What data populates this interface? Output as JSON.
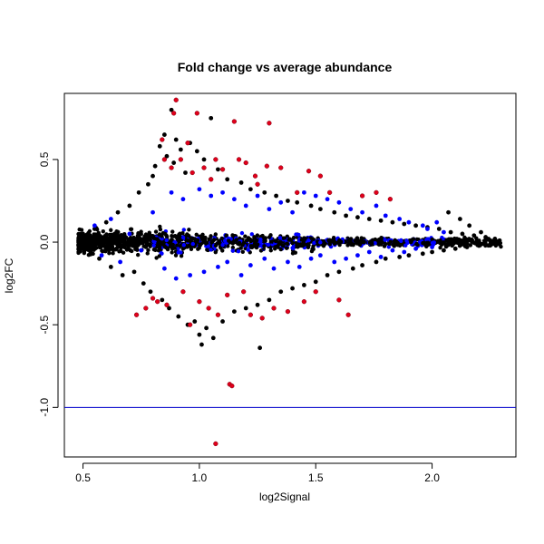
{
  "chart_data": {
    "type": "scatter",
    "title": "Fold change vs average abundance",
    "xlabel": "log2Signal",
    "ylabel": "log2FC",
    "xlim": [
      0.42,
      2.36
    ],
    "ylim": [
      -1.3,
      0.9
    ],
    "xticks": [
      0.5,
      1.0,
      1.5,
      2.0
    ],
    "xtick_labels": [
      "0.5",
      "1.0",
      "1.5",
      "2.0"
    ],
    "yticks": [
      -1.0,
      -0.5,
      0.0,
      0.5
    ],
    "ytick_labels": [
      "-1.0",
      "-0.5",
      "0.0",
      "0.5"
    ],
    "grid": false,
    "hline": {
      "y": -1.0,
      "color": "#0000cc"
    },
    "colors": {
      "black": "#000000",
      "blue": "#0000ff",
      "red": "#e0001b"
    },
    "series": [
      {
        "color": "black",
        "points": [
          [
            0.5,
            0.05
          ],
          [
            0.52,
            -0.03
          ],
          [
            0.55,
            0.08
          ],
          [
            0.57,
            -0.1
          ],
          [
            0.6,
            0.12
          ],
          [
            0.62,
            -0.15
          ],
          [
            0.65,
            0.18
          ],
          [
            0.67,
            -0.2
          ],
          [
            0.7,
            0.22
          ],
          [
            0.72,
            -0.18
          ],
          [
            0.74,
            0.3
          ],
          [
            0.76,
            -0.25
          ],
          [
            0.78,
            0.35
          ],
          [
            0.79,
            -0.3
          ],
          [
            0.8,
            0.4
          ],
          [
            0.81,
            0.46
          ],
          [
            0.83,
            0.58
          ],
          [
            0.84,
            -0.35
          ],
          [
            0.85,
            0.65
          ],
          [
            0.86,
            0.52
          ],
          [
            0.87,
            -0.4
          ],
          [
            0.88,
            0.8
          ],
          [
            0.89,
            0.48
          ],
          [
            0.9,
            0.62
          ],
          [
            0.91,
            -0.45
          ],
          [
            0.92,
            0.56
          ],
          [
            0.94,
            0.42
          ],
          [
            0.95,
            -0.5
          ],
          [
            0.96,
            0.6
          ],
          [
            0.98,
            -0.48
          ],
          [
            0.99,
            0.55
          ],
          [
            1.0,
            -0.56
          ],
          [
            1.01,
            -0.62
          ],
          [
            1.02,
            0.5
          ],
          [
            1.03,
            -0.52
          ],
          [
            1.05,
            0.75
          ],
          [
            1.06,
            -0.58
          ],
          [
            1.08,
            0.44
          ],
          [
            1.1,
            -0.48
          ],
          [
            1.12,
            0.38
          ],
          [
            1.15,
            -0.42
          ],
          [
            1.18,
            0.36
          ],
          [
            1.2,
            -0.4
          ],
          [
            1.22,
            0.32
          ],
          [
            1.25,
            -0.38
          ],
          [
            1.26,
            -0.64
          ],
          [
            1.28,
            0.3
          ],
          [
            1.3,
            -0.35
          ],
          [
            1.33,
            0.28
          ],
          [
            1.35,
            -0.3
          ],
          [
            1.38,
            0.25
          ],
          [
            1.4,
            -0.28
          ],
          [
            1.42,
            0.24
          ],
          [
            1.45,
            -0.26
          ],
          [
            1.48,
            0.22
          ],
          [
            1.5,
            -0.24
          ],
          [
            1.52,
            0.2
          ],
          [
            1.55,
            -0.2
          ],
          [
            1.58,
            0.18
          ],
          [
            1.6,
            -0.18
          ],
          [
            1.63,
            0.16
          ],
          [
            1.66,
            -0.16
          ],
          [
            1.68,
            0.15
          ],
          [
            1.7,
            -0.14
          ],
          [
            1.73,
            0.14
          ],
          [
            1.76,
            -0.12
          ],
          [
            1.78,
            0.13
          ],
          [
            1.8,
            -0.1
          ],
          [
            1.83,
            0.12
          ],
          [
            1.86,
            -0.09
          ],
          [
            1.88,
            0.11
          ],
          [
            1.9,
            -0.08
          ],
          [
            1.93,
            0.1
          ],
          [
            1.96,
            -0.07
          ],
          [
            1.98,
            0.09
          ],
          [
            2.0,
            -0.06
          ],
          [
            2.03,
            0.08
          ],
          [
            2.05,
            -0.05
          ],
          [
            2.07,
            0.18
          ],
          [
            2.08,
            0.06
          ],
          [
            2.1,
            -0.04
          ],
          [
            2.12,
            0.14
          ],
          [
            2.13,
            0.05
          ],
          [
            2.15,
            -0.03
          ],
          [
            2.16,
            0.1
          ],
          [
            2.18,
            0.04
          ],
          [
            2.2,
            -0.02
          ],
          [
            2.21,
            0.06
          ],
          [
            2.23,
            0.03
          ],
          [
            2.25,
            -0.02
          ],
          [
            2.27,
            0.02
          ],
          [
            2.29,
            0.01
          ]
        ]
      },
      {
        "color": "blue",
        "points": [
          [
            0.55,
            0.1
          ],
          [
            0.58,
            -0.08
          ],
          [
            0.62,
            0.14
          ],
          [
            0.66,
            -0.12
          ],
          [
            0.7,
            0.05
          ],
          [
            0.75,
            -0.05
          ],
          [
            0.8,
            0.18
          ],
          [
            0.85,
            -0.16
          ],
          [
            0.88,
            0.3
          ],
          [
            0.9,
            -0.22
          ],
          [
            0.93,
            0.26
          ],
          [
            0.96,
            -0.2
          ],
          [
            1.0,
            0.32
          ],
          [
            1.02,
            -0.18
          ],
          [
            1.05,
            0.28
          ],
          [
            1.08,
            -0.15
          ],
          [
            1.1,
            0.3
          ],
          [
            1.12,
            -0.12
          ],
          [
            1.15,
            0.26
          ],
          [
            1.18,
            -0.2
          ],
          [
            1.2,
            0.22
          ],
          [
            1.22,
            -0.14
          ],
          [
            1.25,
            0.28
          ],
          [
            1.28,
            -0.1
          ],
          [
            1.3,
            0.2
          ],
          [
            1.32,
            -0.16
          ],
          [
            1.35,
            0.24
          ],
          [
            1.38,
            -0.12
          ],
          [
            1.4,
            0.18
          ],
          [
            1.43,
            -0.15
          ],
          [
            1.45,
            0.3
          ],
          [
            1.48,
            -0.1
          ],
          [
            1.5,
            0.28
          ],
          [
            1.52,
            -0.08
          ],
          [
            1.55,
            0.26
          ],
          [
            1.58,
            -0.12
          ],
          [
            1.6,
            0.24
          ],
          [
            1.63,
            -0.1
          ],
          [
            1.65,
            0.2
          ],
          [
            1.68,
            -0.08
          ],
          [
            1.7,
            0.18
          ],
          [
            1.73,
            -0.06
          ],
          [
            1.76,
            0.22
          ],
          [
            1.78,
            -0.09
          ],
          [
            1.8,
            0.16
          ],
          [
            1.83,
            -0.05
          ],
          [
            1.86,
            0.14
          ],
          [
            1.88,
            -0.06
          ],
          [
            1.9,
            0.12
          ],
          [
            1.93,
            -0.04
          ],
          [
            1.96,
            0.1
          ],
          [
            1.98,
            0.08
          ],
          [
            2.0,
            -0.03
          ],
          [
            2.02,
            0.12
          ],
          [
            2.05,
            0.06
          ]
        ]
      },
      {
        "color": "red",
        "points": [
          [
            0.73,
            -0.44
          ],
          [
            0.77,
            -0.4
          ],
          [
            0.8,
            -0.34
          ],
          [
            0.82,
            -0.36
          ],
          [
            0.84,
            0.62
          ],
          [
            0.85,
            0.5
          ],
          [
            0.86,
            -0.38
          ],
          [
            0.88,
            0.45
          ],
          [
            0.89,
            0.78
          ],
          [
            0.9,
            0.86
          ],
          [
            0.92,
            0.5
          ],
          [
            0.93,
            -0.3
          ],
          [
            0.95,
            0.6
          ],
          [
            0.96,
            -0.5
          ],
          [
            0.97,
            0.42
          ],
          [
            0.99,
            0.78
          ],
          [
            1.0,
            -0.36
          ],
          [
            1.02,
            0.45
          ],
          [
            1.04,
            -0.4
          ],
          [
            1.05,
            0.38
          ],
          [
            1.07,
            0.5
          ],
          [
            1.08,
            -0.44
          ],
          [
            1.1,
            0.44
          ],
          [
            1.12,
            -0.32
          ],
          [
            1.13,
            -0.86
          ],
          [
            1.14,
            -0.87
          ],
          [
            1.15,
            0.73
          ],
          [
            1.17,
            0.5
          ],
          [
            1.19,
            -0.3
          ],
          [
            1.2,
            0.48
          ],
          [
            1.22,
            -0.44
          ],
          [
            1.24,
            0.4
          ],
          [
            1.25,
            0.35
          ],
          [
            1.27,
            -0.46
          ],
          [
            1.29,
            0.46
          ],
          [
            1.3,
            0.72
          ],
          [
            1.32,
            -0.4
          ],
          [
            1.35,
            0.45
          ],
          [
            1.38,
            -0.42
          ],
          [
            1.42,
            0.3
          ],
          [
            1.45,
            -0.36
          ],
          [
            1.47,
            0.43
          ],
          [
            1.5,
            -0.3
          ],
          [
            1.52,
            0.4
          ],
          [
            1.56,
            0.3
          ],
          [
            1.6,
            -0.35
          ],
          [
            1.64,
            -0.44
          ],
          [
            1.7,
            0.28
          ],
          [
            1.76,
            0.3
          ],
          [
            1.82,
            0.26
          ]
        ]
      }
    ],
    "outliers": [
      {
        "color": "red",
        "points": [
          [
            1.07,
            -1.22
          ]
        ]
      }
    ]
  }
}
